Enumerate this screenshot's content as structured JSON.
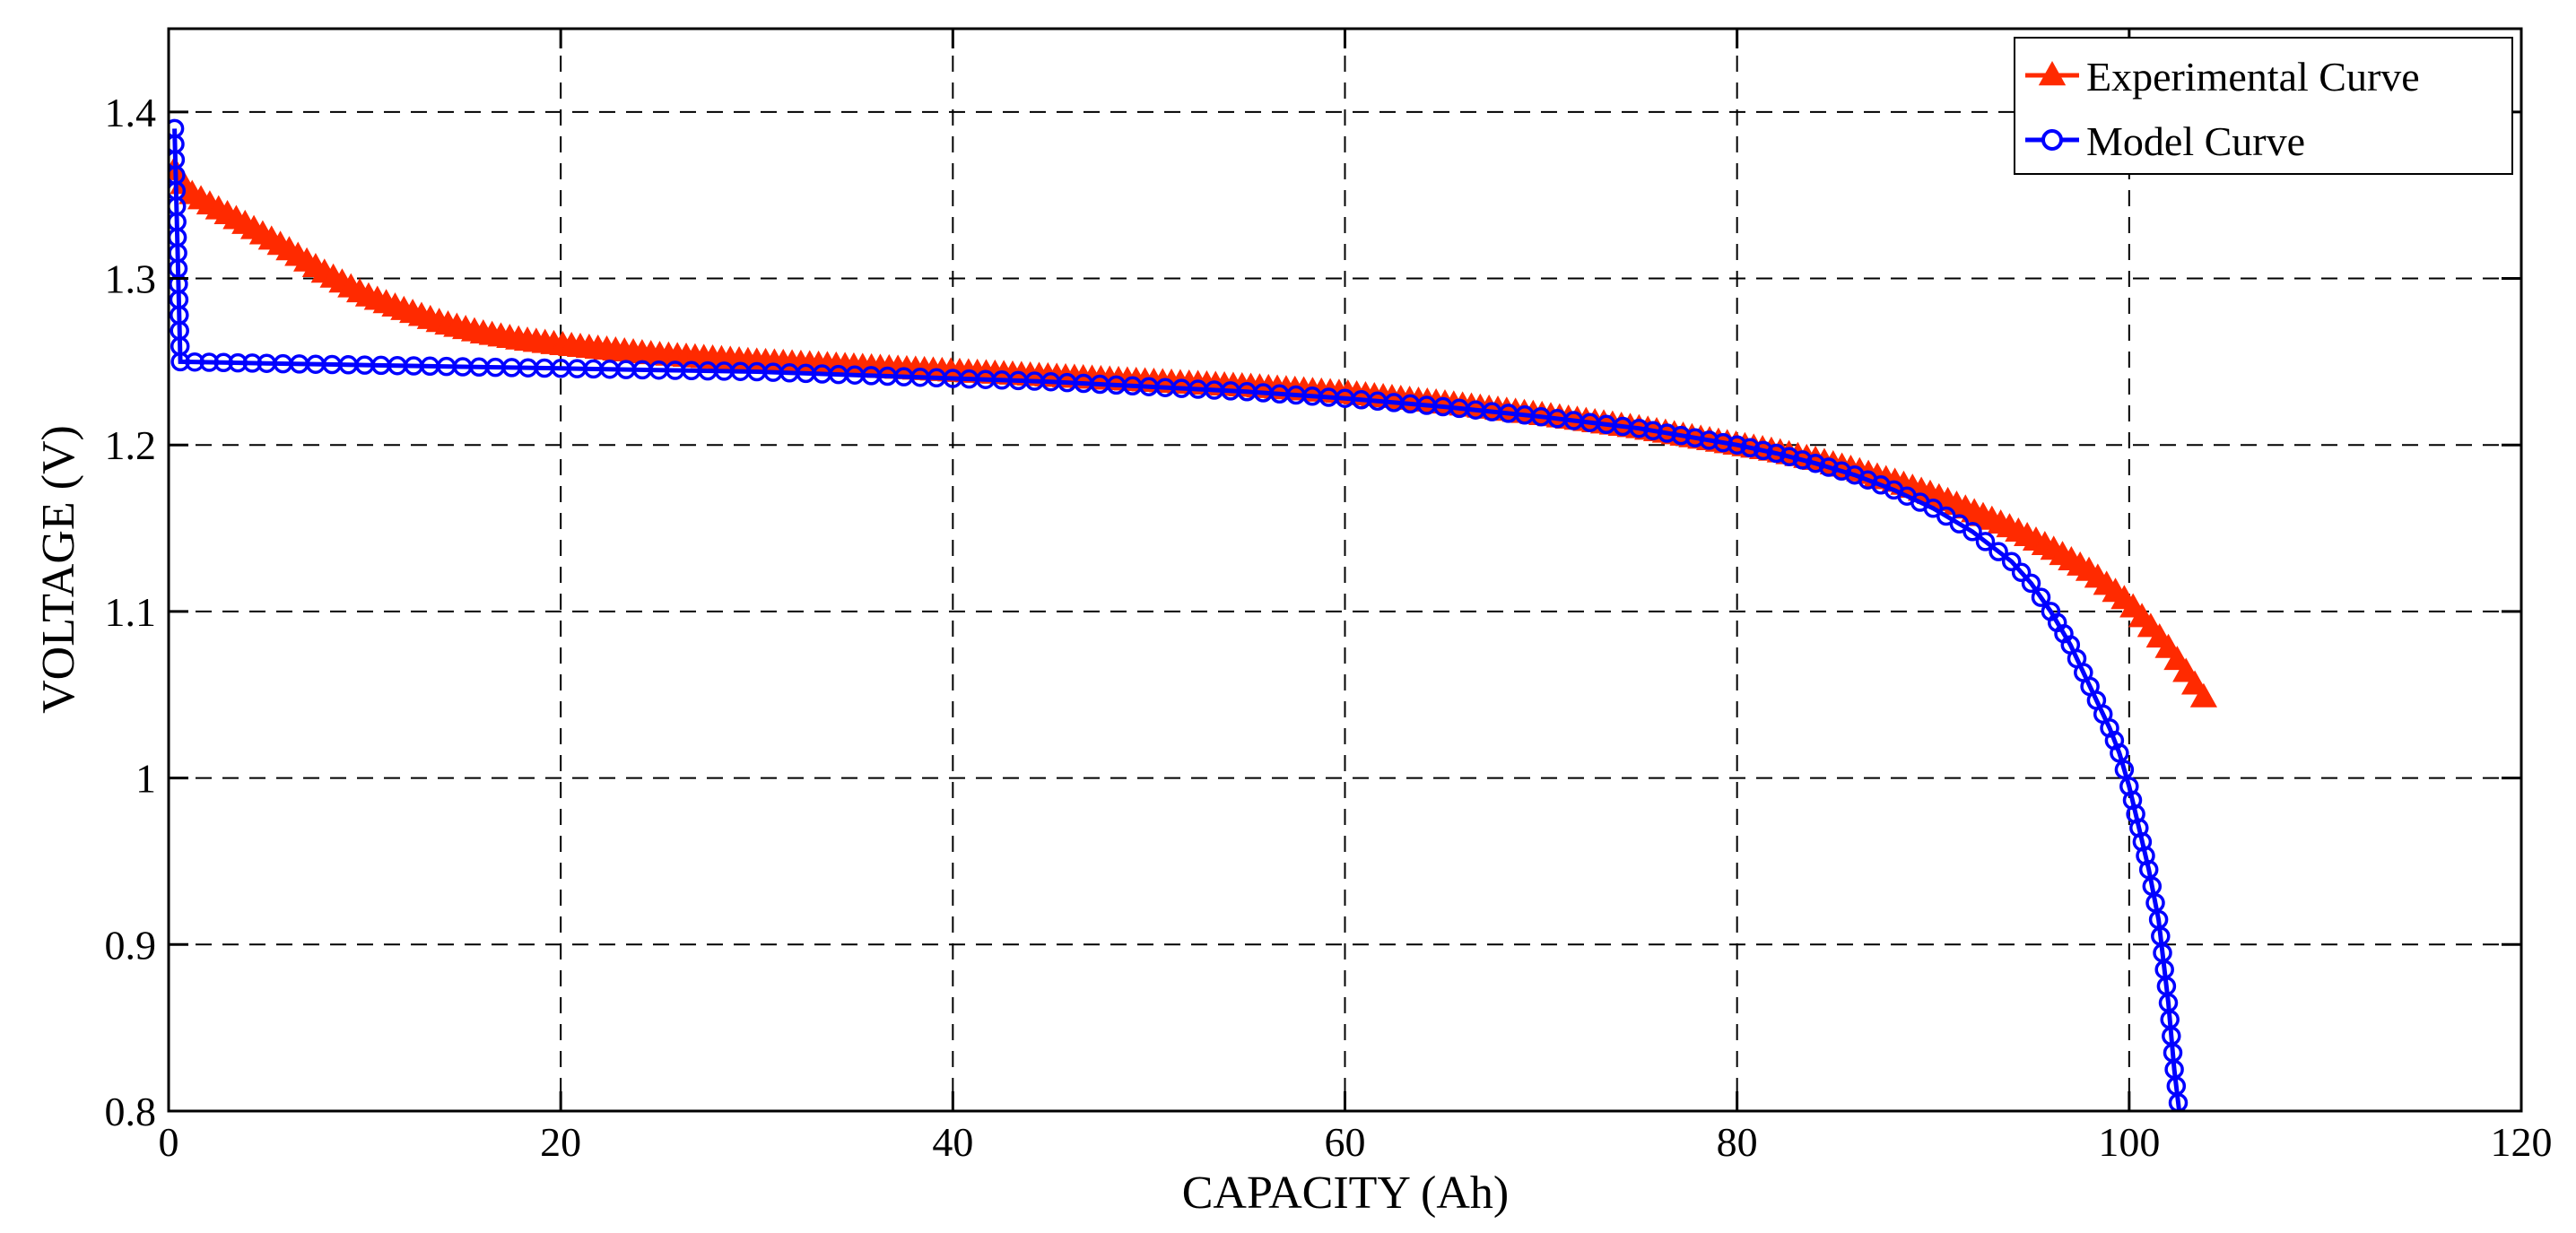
{
  "chart_data": {
    "type": "line",
    "title": "",
    "xlabel": "CAPACITY (Ah)",
    "ylabel": "VOLTAGE (V)",
    "xlim": [
      0,
      120
    ],
    "ylim": [
      0.8,
      1.45
    ],
    "xticks": [
      0,
      20,
      40,
      60,
      80,
      100,
      120
    ],
    "xtick_labels": [
      "0",
      "20",
      "40",
      "60",
      "80",
      "100",
      "120"
    ],
    "yticks": [
      0.8,
      0.9,
      1.0,
      1.1,
      1.2,
      1.3,
      1.4
    ],
    "ytick_labels": [
      "0.8",
      "0.9",
      "1",
      "1.1",
      "1.2",
      "1.3",
      "1.4"
    ],
    "grid": true,
    "grid_style": "dashed",
    "legend_position": "top-right",
    "series": [
      {
        "name": "Experimental Curve",
        "color": "#ff2a00",
        "marker": "triangle",
        "points": [
          [
            0.3,
            1.365
          ],
          [
            1,
            1.352
          ],
          [
            2,
            1.345
          ],
          [
            4,
            1.332
          ],
          [
            6,
            1.318
          ],
          [
            8,
            1.303
          ],
          [
            10,
            1.29
          ],
          [
            12,
            1.281
          ],
          [
            14,
            1.273
          ],
          [
            16,
            1.267
          ],
          [
            18,
            1.263
          ],
          [
            20,
            1.26
          ],
          [
            25,
            1.254
          ],
          [
            30,
            1.25
          ],
          [
            35,
            1.247
          ],
          [
            40,
            1.244
          ],
          [
            45,
            1.241
          ],
          [
            50,
            1.238
          ],
          [
            55,
            1.235
          ],
          [
            60,
            1.231
          ],
          [
            65,
            1.225
          ],
          [
            70,
            1.218
          ],
          [
            75,
            1.21
          ],
          [
            80,
            1.2
          ],
          [
            82,
            1.196
          ],
          [
            84,
            1.191
          ],
          [
            86,
            1.185
          ],
          [
            88,
            1.178
          ],
          [
            90,
            1.17
          ],
          [
            92,
            1.16
          ],
          [
            94,
            1.15
          ],
          [
            96,
            1.138
          ],
          [
            98,
            1.124
          ],
          [
            100,
            1.105
          ],
          [
            101,
            1.092
          ],
          [
            102,
            1.078
          ],
          [
            103,
            1.062
          ],
          [
            104,
            1.045
          ]
        ]
      },
      {
        "name": "Model Curve",
        "color": "#0000ff",
        "marker": "circle",
        "points": [
          [
            0.3,
            1.39
          ],
          [
            0.6,
            1.25
          ],
          [
            5,
            1.249
          ],
          [
            10,
            1.248
          ],
          [
            15,
            1.247
          ],
          [
            20,
            1.246
          ],
          [
            25,
            1.245
          ],
          [
            30,
            1.244
          ],
          [
            35,
            1.242
          ],
          [
            40,
            1.24
          ],
          [
            45,
            1.238
          ],
          [
            50,
            1.235
          ],
          [
            55,
            1.232
          ],
          [
            60,
            1.228
          ],
          [
            65,
            1.223
          ],
          [
            70,
            1.217
          ],
          [
            75,
            1.21
          ],
          [
            80,
            1.2
          ],
          [
            82,
            1.195
          ],
          [
            84,
            1.189
          ],
          [
            86,
            1.182
          ],
          [
            88,
            1.173
          ],
          [
            90,
            1.162
          ],
          [
            92,
            1.148
          ],
          [
            94,
            1.13
          ],
          [
            95,
            1.117
          ],
          [
            96,
            1.1
          ],
          [
            97,
            1.08
          ],
          [
            98,
            1.055
          ],
          [
            99,
            1.03
          ],
          [
            99.5,
            1.015
          ],
          [
            100,
            0.995
          ],
          [
            100.5,
            0.97
          ],
          [
            101,
            0.945
          ],
          [
            101.5,
            0.915
          ],
          [
            102,
            0.865
          ],
          [
            102.3,
            0.825
          ],
          [
            102.6,
            0.795
          ]
        ]
      }
    ]
  }
}
